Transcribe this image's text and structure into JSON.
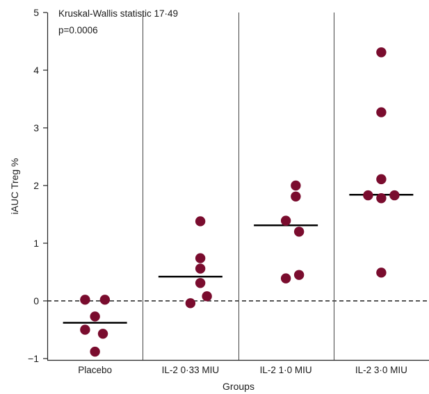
{
  "chart_data": {
    "type": "scatter",
    "title": "",
    "xlabel": "Groups",
    "ylabel": "iAUC Treg %",
    "ylim": [
      -1,
      5
    ],
    "yticks": [
      "−1",
      "0",
      "1",
      "2",
      "3",
      "4",
      "5"
    ],
    "reference_line": {
      "y": 0,
      "style": "dashed"
    },
    "categories": [
      "Placebo",
      "IL-2 0·33 MIU",
      "IL-2 1·0 MIU",
      "IL-2 3·0 MIU"
    ],
    "annotation": [
      "Kruskal-Wallis statistic 17·49",
      "p=0.0006"
    ],
    "point_color": "#7a0c2e",
    "median_color": "#000000",
    "groups": [
      {
        "category": "Placebo",
        "median": -0.38,
        "points": [
          {
            "x": -0.15,
            "y": 0.02
          },
          {
            "x": 0.15,
            "y": 0.02
          },
          {
            "x": 0.0,
            "y": -0.27
          },
          {
            "x": -0.15,
            "y": -0.5
          },
          {
            "x": 0.12,
            "y": -0.57
          },
          {
            "x": 0.0,
            "y": -0.88
          }
        ]
      },
      {
        "category": "IL-2 0·33 MIU",
        "median": 0.42,
        "points": [
          {
            "x": 0.15,
            "y": 1.38
          },
          {
            "x": 0.15,
            "y": 0.74
          },
          {
            "x": 0.15,
            "y": 0.56
          },
          {
            "x": 0.15,
            "y": 0.31
          },
          {
            "x": 0.25,
            "y": 0.08
          },
          {
            "x": 0.0,
            "y": -0.04
          }
        ]
      },
      {
        "category": "IL-2 1·0 MIU",
        "median": 1.31,
        "points": [
          {
            "x": 0.15,
            "y": 2.0
          },
          {
            "x": 0.15,
            "y": 1.81
          },
          {
            "x": 0.0,
            "y": 1.39
          },
          {
            "x": 0.2,
            "y": 1.2
          },
          {
            "x": 0.2,
            "y": 0.45
          },
          {
            "x": 0.0,
            "y": 0.39
          }
        ]
      },
      {
        "category": "IL-2 3·0 MIU",
        "median": 1.84,
        "points": [
          {
            "x": 0.0,
            "y": 4.31
          },
          {
            "x": 0.0,
            "y": 3.27
          },
          {
            "x": 0.0,
            "y": 2.11
          },
          {
            "x": -0.2,
            "y": 1.83
          },
          {
            "x": 0.2,
            "y": 1.83
          },
          {
            "x": 0.0,
            "y": 1.78
          },
          {
            "x": 0.0,
            "y": 0.49
          }
        ]
      }
    ]
  }
}
